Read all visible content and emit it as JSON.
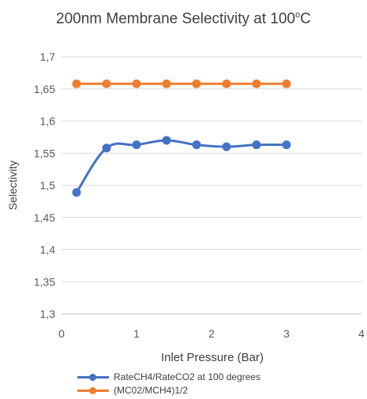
{
  "title": {
    "main": "200nm Membrane Selectivity at 100",
    "superscript": "o",
    "suffix": "C"
  },
  "colors": {
    "series1": "#4472C4",
    "series2": "#ED7D31",
    "grid": "#D9D9D9",
    "text": "#595959"
  },
  "chart_data": {
    "type": "line",
    "title": "200nm Membrane Selectivity at 100oC",
    "xlabel": "Inlet Pressure (Bar)",
    "ylabel": "Selectivity",
    "xlim": [
      0,
      4
    ],
    "ylim": [
      1.3,
      1.7
    ],
    "xticks": [
      "0",
      "1",
      "2",
      "3",
      "4"
    ],
    "yticks": [
      "1,3",
      "1,35",
      "1,4",
      "1,45",
      "1,5",
      "1,55",
      "1,6",
      "1,65",
      "1,7"
    ],
    "grid": "horizontal",
    "legend_position": "bottom",
    "x": [
      0.2,
      0.6,
      1.0,
      1.4,
      1.8,
      2.2,
      2.6,
      3.0
    ],
    "series": [
      {
        "name": "RateCH4/RateCO2 at 100 degrees",
        "color": "#4472C4",
        "values": [
          1.489,
          1.558,
          1.563,
          1.57,
          1.563,
          1.56,
          1.563,
          1.563
        ]
      },
      {
        "name": "(MC02/MCH4)1/2",
        "color": "#ED7D31",
        "values": [
          1.658,
          1.658,
          1.658,
          1.658,
          1.658,
          1.658,
          1.658,
          1.658
        ]
      }
    ]
  }
}
